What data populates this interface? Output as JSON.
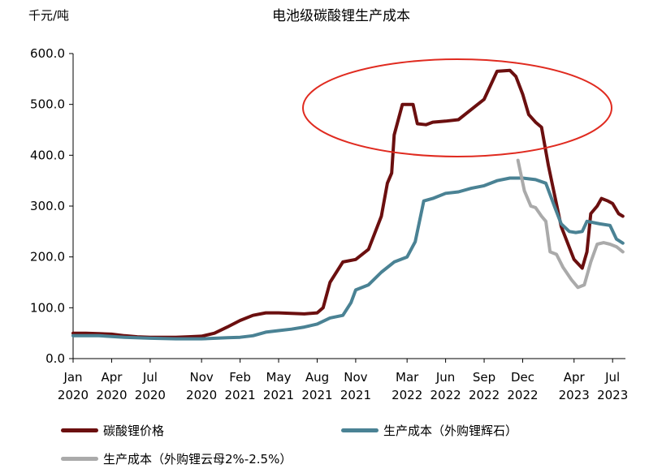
{
  "chart_data": {
    "type": "line",
    "title": "电池级碳酸锂生产成本",
    "ylabel": "千元/吨",
    "ylim": [
      0,
      600
    ],
    "yticks": [
      "0.0",
      "100.0",
      "200.0",
      "300.0",
      "400.0",
      "500.0",
      "600.0"
    ],
    "xticks": [
      {
        "month": "Jan",
        "year": "2020"
      },
      {
        "month": "Apr",
        "year": "2020"
      },
      {
        "month": "Jul",
        "year": "2020"
      },
      {
        "month": "Nov",
        "year": "2020"
      },
      {
        "month": "Feb",
        "year": "2021"
      },
      {
        "month": "May",
        "year": "2021"
      },
      {
        "month": "Aug",
        "year": "2021"
      },
      {
        "month": "Nov",
        "year": "2021"
      },
      {
        "month": "Mar",
        "year": "2022"
      },
      {
        "month": "Jun",
        "year": "2022"
      },
      {
        "month": "Sep",
        "year": "2022"
      },
      {
        "month": "Dec",
        "year": "2022"
      },
      {
        "month": "Apr",
        "year": "2023"
      },
      {
        "month": "Jul",
        "year": "2023"
      }
    ],
    "series": [
      {
        "name": "碳酸锂价格",
        "color": "#6b0f0f",
        "points": [
          [
            "2020-01",
            50
          ],
          [
            "2020-02",
            50
          ],
          [
            "2020-03",
            49
          ],
          [
            "2020-04",
            48
          ],
          [
            "2020-05",
            45
          ],
          [
            "2020-06",
            43
          ],
          [
            "2020-07",
            42
          ],
          [
            "2020-08",
            42
          ],
          [
            "2020-09",
            42
          ],
          [
            "2020-10",
            43
          ],
          [
            "2020-11",
            44
          ],
          [
            "2020-12",
            50
          ],
          [
            "2021-01",
            62
          ],
          [
            "2021-02",
            75
          ],
          [
            "2021-03",
            85
          ],
          [
            "2021-04",
            90
          ],
          [
            "2021-05",
            90
          ],
          [
            "2021-06",
            89
          ],
          [
            "2021-07",
            88
          ],
          [
            "2021-08",
            90
          ],
          [
            "2021-08-15",
            100
          ],
          [
            "2021-09",
            150
          ],
          [
            "2021-10",
            190
          ],
          [
            "2021-11",
            195
          ],
          [
            "2021-12",
            215
          ],
          [
            "2022-01-01",
            280
          ],
          [
            "2022-01-15",
            345
          ],
          [
            "2022-01-25",
            365
          ],
          [
            "2022-02-01",
            440
          ],
          [
            "2022-02-20",
            500
          ],
          [
            "2022-03-15",
            500
          ],
          [
            "2022-03-25",
            462
          ],
          [
            "2022-04-15",
            460
          ],
          [
            "2022-05-01",
            465
          ],
          [
            "2022-06",
            467
          ],
          [
            "2022-07",
            470
          ],
          [
            "2022-08",
            490
          ],
          [
            "2022-09",
            510
          ],
          [
            "2022-09-20",
            545
          ],
          [
            "2022-10",
            565
          ],
          [
            "2022-11-01",
            567
          ],
          [
            "2022-11-15",
            555
          ],
          [
            "2022-12-01",
            520
          ],
          [
            "2022-12-15",
            480
          ],
          [
            "2023-01-01",
            465
          ],
          [
            "2023-01-15",
            455
          ],
          [
            "2023-02",
            380
          ],
          [
            "2023-03",
            260
          ],
          [
            "2023-04",
            195
          ],
          [
            "2023-04-20",
            178
          ],
          [
            "2023-05-01",
            210
          ],
          [
            "2023-05-10",
            285
          ],
          [
            "2023-05-25",
            300
          ],
          [
            "2023-06-05",
            315
          ],
          [
            "2023-06-20",
            310
          ],
          [
            "2023-07-01",
            305
          ],
          [
            "2023-07-15",
            285
          ],
          [
            "2023-07-25",
            280
          ]
        ]
      },
      {
        "name": "生产成本（外购锂辉石）",
        "color": "#4a8294",
        "points": [
          [
            "2020-01",
            45
          ],
          [
            "2020-03",
            45
          ],
          [
            "2020-05",
            42
          ],
          [
            "2020-07",
            40
          ],
          [
            "2020-09",
            39
          ],
          [
            "2020-11",
            39
          ],
          [
            "2021-01",
            41
          ],
          [
            "2021-02",
            42
          ],
          [
            "2021-03",
            45
          ],
          [
            "2021-04",
            52
          ],
          [
            "2021-05",
            55
          ],
          [
            "2021-06",
            58
          ],
          [
            "2021-07",
            62
          ],
          [
            "2021-08",
            68
          ],
          [
            "2021-09",
            80
          ],
          [
            "2021-10",
            85
          ],
          [
            "2021-10-20",
            110
          ],
          [
            "2021-11",
            135
          ],
          [
            "2021-12",
            145
          ],
          [
            "2022-01",
            170
          ],
          [
            "2022-02",
            190
          ],
          [
            "2022-03-01",
            200
          ],
          [
            "2022-03-20",
            230
          ],
          [
            "2022-04-10",
            310
          ],
          [
            "2022-05",
            315
          ],
          [
            "2022-06",
            325
          ],
          [
            "2022-07",
            328
          ],
          [
            "2022-08",
            335
          ],
          [
            "2022-09",
            340
          ],
          [
            "2022-10",
            350
          ],
          [
            "2022-11",
            355
          ],
          [
            "2022-12",
            355
          ],
          [
            "2023-01",
            352
          ],
          [
            "2023-01-25",
            345
          ],
          [
            "2023-02-15",
            300
          ],
          [
            "2023-03-01",
            265
          ],
          [
            "2023-03-20",
            250
          ],
          [
            "2023-04-05",
            248
          ],
          [
            "2023-04-20",
            250
          ],
          [
            "2023-05-01",
            270
          ],
          [
            "2023-06-01",
            265
          ],
          [
            "2023-06-25",
            262
          ],
          [
            "2023-07-10",
            235
          ],
          [
            "2023-07-25",
            227
          ]
        ]
      },
      {
        "name": "生产成本（外购锂云母2%-2.5%）",
        "color": "#aaaaaa",
        "points": [
          [
            "2022-11-20",
            390
          ],
          [
            "2022-12-05",
            330
          ],
          [
            "2022-12-20",
            300
          ],
          [
            "2023-01-01",
            297
          ],
          [
            "2023-01-15",
            280
          ],
          [
            "2023-01-25",
            270
          ],
          [
            "2023-02-05",
            210
          ],
          [
            "2023-02-20",
            205
          ],
          [
            "2023-03-05",
            180
          ],
          [
            "2023-03-25",
            155
          ],
          [
            "2023-04-10",
            140
          ],
          [
            "2023-04-25",
            145
          ],
          [
            "2023-05-10",
            190
          ],
          [
            "2023-05-25",
            225
          ],
          [
            "2023-06-10",
            228
          ],
          [
            "2023-06-25",
            225
          ],
          [
            "2023-07-10",
            220
          ],
          [
            "2023-07-25",
            210
          ]
        ]
      }
    ],
    "annotation": {
      "shape": "ellipse",
      "color": "#e02b20"
    }
  }
}
